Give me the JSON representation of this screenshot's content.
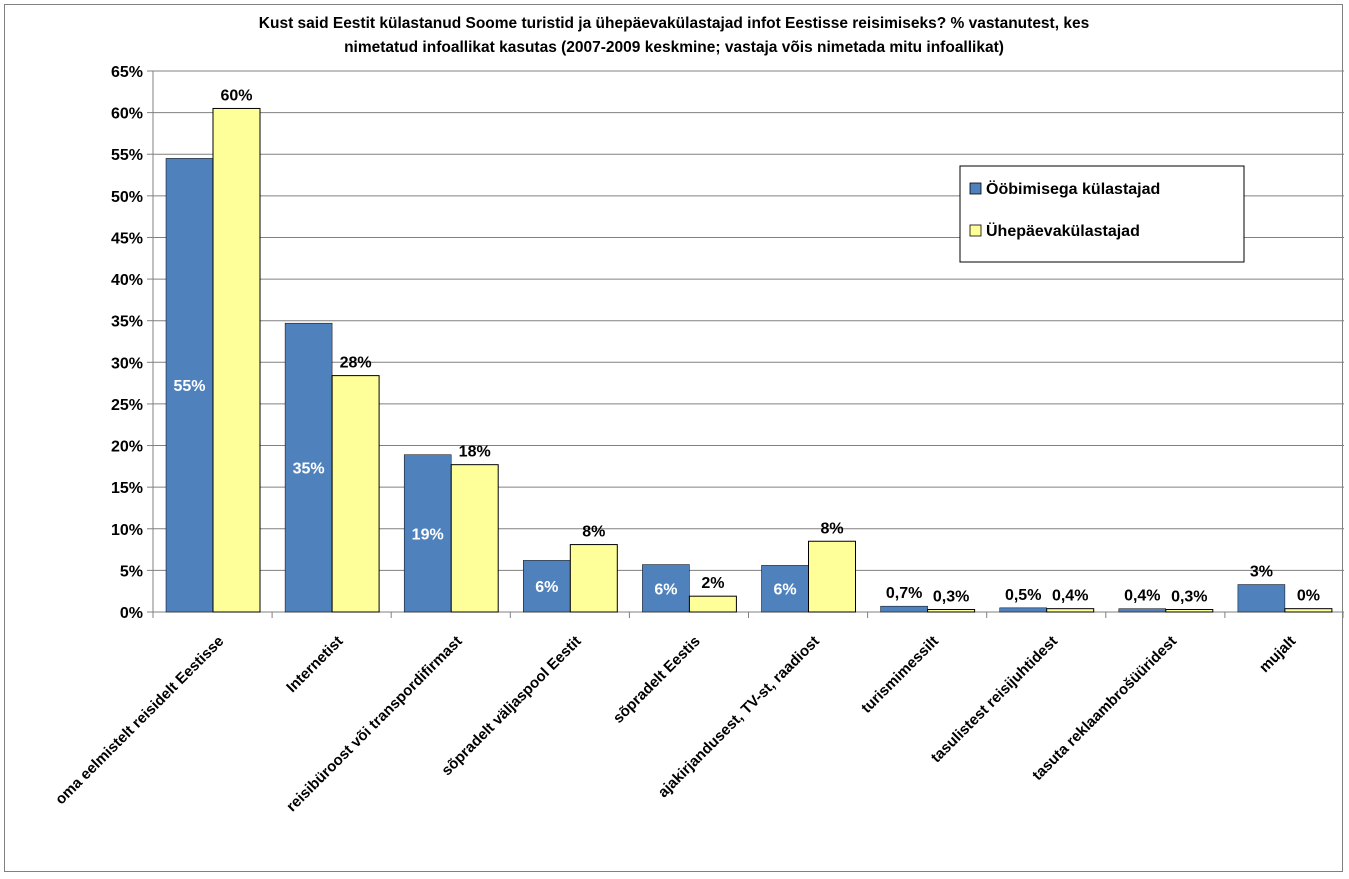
{
  "chart_data": {
    "type": "bar",
    "title_lines": [
      "Kust said Eestit külastanud Soome turistid ja ühepäevakülastajad infot Eestisse reisimiseks? % vastanutest, kes",
      "nimetatud infoallikat kasutas (2007-2009 keskmine; vastaja võis nimetada mitu infoallikat)"
    ],
    "categories": [
      "oma eelmistelt reisidelt Eestisse",
      "Internetist",
      "reisibüroost või transpordifirmast",
      "sõpradelt väljaspool Eestit",
      "sõpradelt Eestis",
      "ajakirjandusest, TV-st, raadiost",
      "turismimessilt",
      "tasulistest reisijuhtidest",
      "tasuta reklaambrošüüridest",
      "mujalt"
    ],
    "series": [
      {
        "name": "Ööbimisega külastajad",
        "color": "#4F81BD",
        "values": [
          54.5,
          34.7,
          18.9,
          6.2,
          5.7,
          5.6,
          0.7,
          0.5,
          0.4,
          3.3
        ],
        "labels": [
          "55%",
          "35%",
          "19%",
          "6%",
          "6%",
          "6%",
          "0,7%",
          "0,5%",
          "0,4%",
          "3%"
        ],
        "label_position": [
          "inside",
          "inside",
          "inside",
          "inside",
          "inside",
          "inside",
          "above",
          "above",
          "above",
          "above"
        ]
      },
      {
        "name": "Ühepäevakülastajad",
        "color": "#FFFF99",
        "values": [
          60.5,
          28.4,
          17.7,
          8.1,
          1.9,
          8.5,
          0.3,
          0.4,
          0.3,
          0.4
        ],
        "labels": [
          "60%",
          "28%",
          "18%",
          "8%",
          "2%",
          "8%",
          "0,3%",
          "0,4%",
          "0,3%",
          "0%"
        ],
        "label_position": [
          "above",
          "above",
          "above",
          "above",
          "above",
          "above",
          "above",
          "above",
          "above",
          "above"
        ]
      }
    ],
    "y_ticks": [
      "0%",
      "5%",
      "10%",
      "15%",
      "20%",
      "25%",
      "30%",
      "35%",
      "40%",
      "45%",
      "50%",
      "55%",
      "60%",
      "65%"
    ],
    "ylim": [
      0,
      65
    ],
    "y_step": 5,
    "grid": true,
    "legend_position": "right",
    "axis_color": "#808080",
    "grid_color": "#808080",
    "bar_border_color": "#000000"
  }
}
